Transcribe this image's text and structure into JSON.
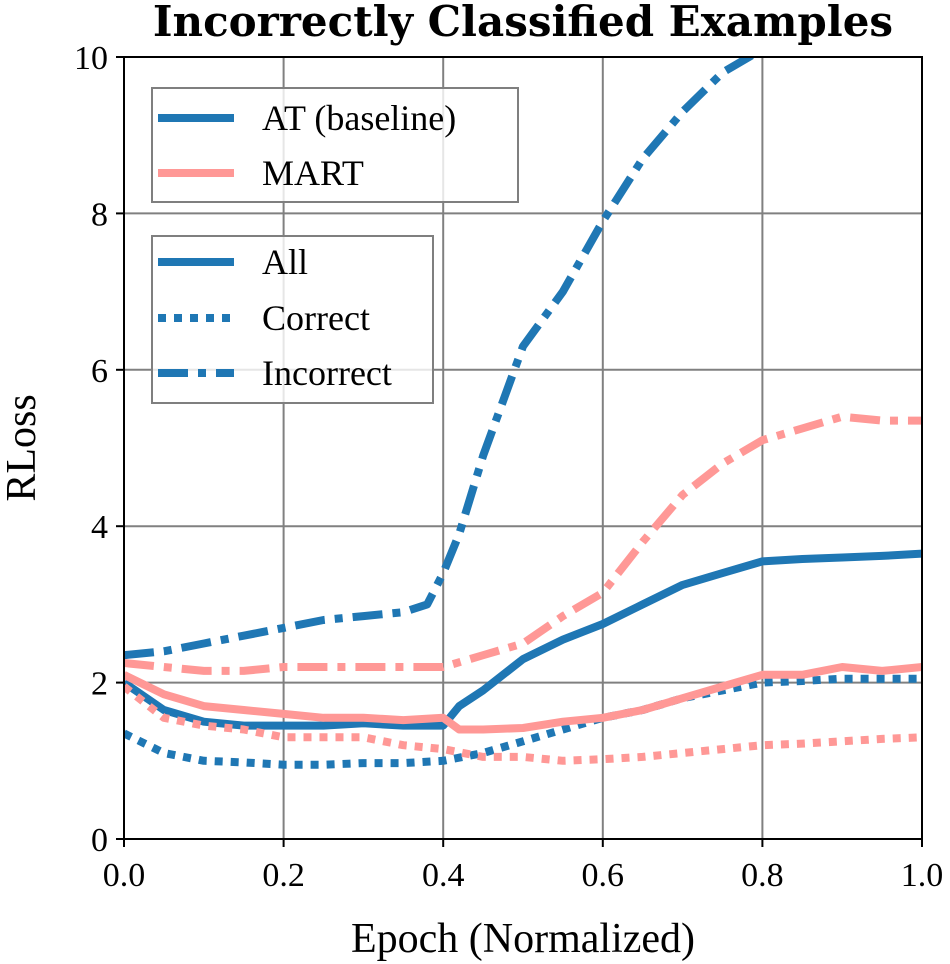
{
  "chart_data": {
    "type": "line",
    "title": "Incorrectly Classified Examples",
    "xlabel": "Epoch (Normalized)",
    "ylabel": "RLoss",
    "xlim": [
      0,
      1
    ],
    "ylim": [
      0,
      10
    ],
    "xticks": [
      "0.0",
      "0.2",
      "0.4",
      "0.6",
      "0.8",
      "1.0"
    ],
    "yticks": [
      "0",
      "2",
      "4",
      "6",
      "8",
      "10"
    ],
    "grid": true,
    "methods": [
      {
        "name": "AT (baseline)",
        "color": "#1f77b4"
      },
      {
        "name": "MART",
        "color": "#ff9896"
      }
    ],
    "styles": [
      {
        "name": "All",
        "dash": "solid"
      },
      {
        "name": "Correct",
        "dash": "dotted"
      },
      {
        "name": "Incorrect",
        "dash": "dashdot"
      }
    ],
    "series": [
      {
        "method": "AT (baseline)",
        "subset": "All",
        "color": "#1f77b4",
        "dash": "solid",
        "x": [
          0,
          0.05,
          0.1,
          0.15,
          0.2,
          0.25,
          0.3,
          0.35,
          0.4,
          0.42,
          0.45,
          0.5,
          0.55,
          0.6,
          0.65,
          0.7,
          0.75,
          0.8,
          0.85,
          0.9,
          0.95,
          1.0
        ],
        "y": [
          2.0,
          1.65,
          1.5,
          1.45,
          1.45,
          1.45,
          1.48,
          1.45,
          1.45,
          1.7,
          1.9,
          2.3,
          2.55,
          2.75,
          3.0,
          3.25,
          3.4,
          3.55,
          3.58,
          3.6,
          3.62,
          3.65
        ]
      },
      {
        "method": "AT (baseline)",
        "subset": "Correct",
        "color": "#1f77b4",
        "dash": "dotted",
        "x": [
          0,
          0.05,
          0.1,
          0.15,
          0.2,
          0.25,
          0.3,
          0.35,
          0.4,
          0.45,
          0.5,
          0.55,
          0.6,
          0.65,
          0.7,
          0.75,
          0.8,
          0.85,
          0.9,
          0.95,
          1.0
        ],
        "y": [
          1.35,
          1.1,
          1.0,
          0.98,
          0.95,
          0.95,
          0.97,
          0.97,
          1.0,
          1.1,
          1.25,
          1.4,
          1.55,
          1.65,
          1.8,
          1.9,
          2.0,
          2.02,
          2.05,
          2.05,
          2.05
        ]
      },
      {
        "method": "AT (baseline)",
        "subset": "Incorrect",
        "color": "#1f77b4",
        "dash": "dashdot",
        "x": [
          0,
          0.05,
          0.1,
          0.15,
          0.2,
          0.25,
          0.3,
          0.35,
          0.38,
          0.4,
          0.42,
          0.45,
          0.5,
          0.55,
          0.6,
          0.65,
          0.7,
          0.75,
          0.8,
          0.85,
          0.9
        ],
        "y": [
          2.35,
          2.4,
          2.5,
          2.6,
          2.7,
          2.8,
          2.85,
          2.9,
          3.0,
          3.4,
          3.9,
          4.9,
          6.3,
          7.0,
          7.9,
          8.7,
          9.3,
          9.8,
          10.1,
          10.05,
          10.1
        ]
      },
      {
        "method": "MART",
        "subset": "All",
        "color": "#ff9896",
        "dash": "solid",
        "x": [
          0,
          0.05,
          0.1,
          0.15,
          0.2,
          0.25,
          0.3,
          0.35,
          0.4,
          0.42,
          0.45,
          0.5,
          0.55,
          0.6,
          0.65,
          0.7,
          0.75,
          0.8,
          0.85,
          0.9,
          0.95,
          1.0
        ],
        "y": [
          2.1,
          1.85,
          1.7,
          1.65,
          1.6,
          1.55,
          1.55,
          1.52,
          1.55,
          1.4,
          1.4,
          1.42,
          1.5,
          1.55,
          1.65,
          1.8,
          1.95,
          2.1,
          2.1,
          2.2,
          2.15,
          2.2
        ]
      },
      {
        "method": "MART",
        "subset": "Correct",
        "color": "#ff9896",
        "dash": "dotted",
        "x": [
          0,
          0.05,
          0.1,
          0.15,
          0.2,
          0.25,
          0.3,
          0.35,
          0.4,
          0.45,
          0.5,
          0.55,
          0.6,
          0.65,
          0.7,
          0.75,
          0.8,
          0.85,
          0.9,
          0.95,
          1.0
        ],
        "y": [
          1.95,
          1.55,
          1.45,
          1.4,
          1.3,
          1.3,
          1.3,
          1.2,
          1.15,
          1.05,
          1.05,
          1.0,
          1.02,
          1.05,
          1.1,
          1.15,
          1.2,
          1.22,
          1.25,
          1.28,
          1.3
        ]
      },
      {
        "method": "MART",
        "subset": "Incorrect",
        "color": "#ff9896",
        "dash": "dashdot",
        "x": [
          0,
          0.05,
          0.1,
          0.15,
          0.2,
          0.25,
          0.3,
          0.35,
          0.4,
          0.45,
          0.5,
          0.55,
          0.6,
          0.65,
          0.7,
          0.75,
          0.8,
          0.85,
          0.9,
          0.95,
          1.0
        ],
        "y": [
          2.25,
          2.2,
          2.15,
          2.15,
          2.2,
          2.2,
          2.2,
          2.2,
          2.2,
          2.35,
          2.5,
          2.85,
          3.15,
          3.8,
          4.4,
          4.8,
          5.1,
          5.25,
          5.4,
          5.35,
          5.35
        ]
      }
    ]
  }
}
